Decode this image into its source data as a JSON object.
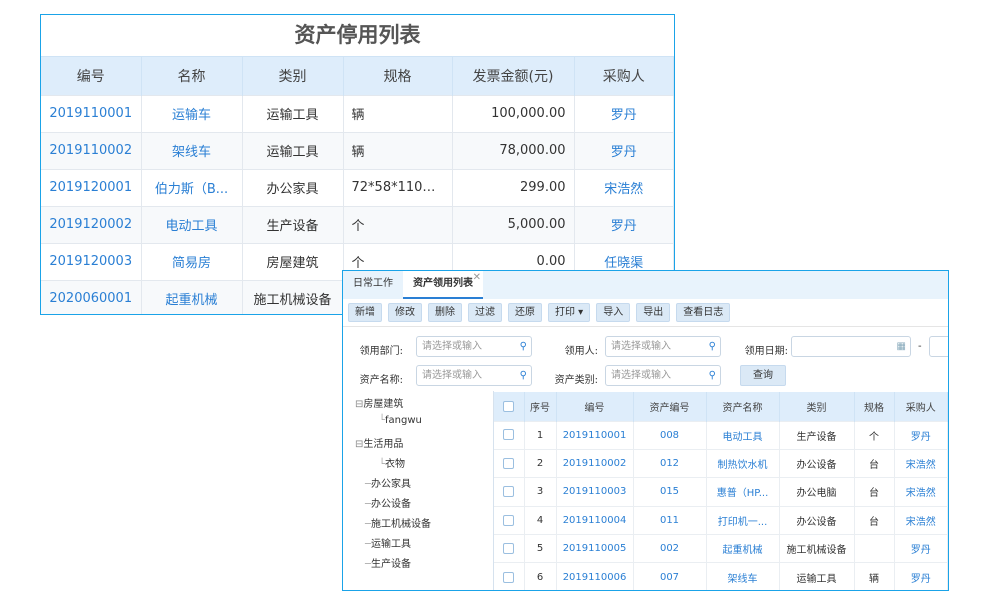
{
  "back": {
    "title": "资产停用列表",
    "headers": [
      "编号",
      "名称",
      "类别",
      "规格",
      "发票金额(元)",
      "采购人"
    ],
    "rows": [
      [
        "2019110001",
        "运输车",
        "运输工具",
        "辆",
        "100,000.00",
        "罗丹"
      ],
      [
        "2019110002",
        "架线车",
        "运输工具",
        "辆",
        "78,000.00",
        "罗丹"
      ],
      [
        "2019120001",
        "伯力斯（B...",
        "办公家具",
        "72*58*110~1...",
        "299.00",
        "宋浩然"
      ],
      [
        "2019120002",
        "电动工具",
        "生产设备",
        "个",
        "5,000.00",
        "罗丹"
      ],
      [
        "2019120003",
        "简易房",
        "房屋建筑",
        "个",
        "0.00",
        "任晓渠"
      ],
      [
        "2020060001",
        "起重机械",
        "施工机械设备",
        "",
        "",
        ""
      ]
    ]
  },
  "front": {
    "tabs": [
      {
        "label": "日常工作"
      },
      {
        "label": "资产领用列表"
      }
    ],
    "toolbar": [
      "新增",
      "修改",
      "删除",
      "过滤",
      "还原",
      "打印 ▾",
      "导入",
      "导出",
      "查看日志"
    ],
    "filters": {
      "dept_label": "领用部门:",
      "user_label": "领用人:",
      "date_label": "领用日期:",
      "name_label": "资产名称:",
      "type_label": "资产类别:",
      "placeholder": "请选择或输入",
      "date_sep": "-",
      "query": "查询"
    },
    "tree": [
      "房屋建筑",
      "fangwu",
      "生活用品",
      "衣物",
      "办公家具",
      "办公设备",
      "施工机械设备",
      "运输工具",
      "生产设备"
    ],
    "headers": [
      "序号",
      "编号",
      "资产编号",
      "资产名称",
      "类别",
      "规格",
      "采购人"
    ],
    "rows": [
      [
        "1",
        "2019110001",
        "008",
        "电动工具",
        "生产设备",
        "个",
        "罗丹"
      ],
      [
        "2",
        "2019110002",
        "012",
        "制热饮水机",
        "办公设备",
        "台",
        "宋浩然"
      ],
      [
        "3",
        "2019110003",
        "015",
        "惠普（HP...",
        "办公电脑",
        "台",
        "宋浩然"
      ],
      [
        "4",
        "2019110004",
        "011",
        "打印机一...",
        "办公设备",
        "台",
        "宋浩然"
      ],
      [
        "5",
        "2019110005",
        "002",
        "起重机械",
        "施工机械设备",
        "",
        "罗丹"
      ],
      [
        "6",
        "2019110006",
        "007",
        "架线车",
        "运输工具",
        "辆",
        "罗丹"
      ]
    ]
  },
  "colors": {
    "accent": "#1aa3e8",
    "link": "#2a7fd4",
    "header_bg": "#deedfb"
  }
}
